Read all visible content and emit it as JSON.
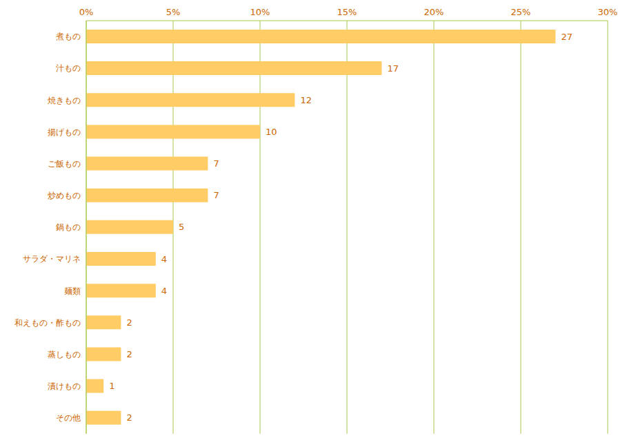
{
  "chart_data": {
    "type": "bar",
    "orientation": "horizontal",
    "categories": [
      "煮もの",
      "汁もの",
      "焼きもの",
      "揚げもの",
      "ご飯もの",
      "炒めもの",
      "鍋もの",
      "サラダ・マリネ",
      "麺類",
      "和えもの・酢もの",
      "蒸しもの",
      "漬けもの",
      "その他"
    ],
    "values": [
      27,
      17,
      12,
      10,
      7,
      7,
      5,
      4,
      4,
      2,
      2,
      1,
      2
    ],
    "color": "#ffcc66",
    "xlim": [
      0,
      30
    ],
    "xticks": [
      {
        "value": 0,
        "label": "0%"
      },
      {
        "value": 5,
        "label": "5%"
      },
      {
        "value": 10,
        "label": "10%"
      },
      {
        "value": 15,
        "label": "15%"
      },
      {
        "value": 20,
        "label": "20%"
      },
      {
        "value": 25,
        "label": "25%"
      },
      {
        "value": 30,
        "label": "30%"
      }
    ],
    "grid": true,
    "data_labels": true
  }
}
